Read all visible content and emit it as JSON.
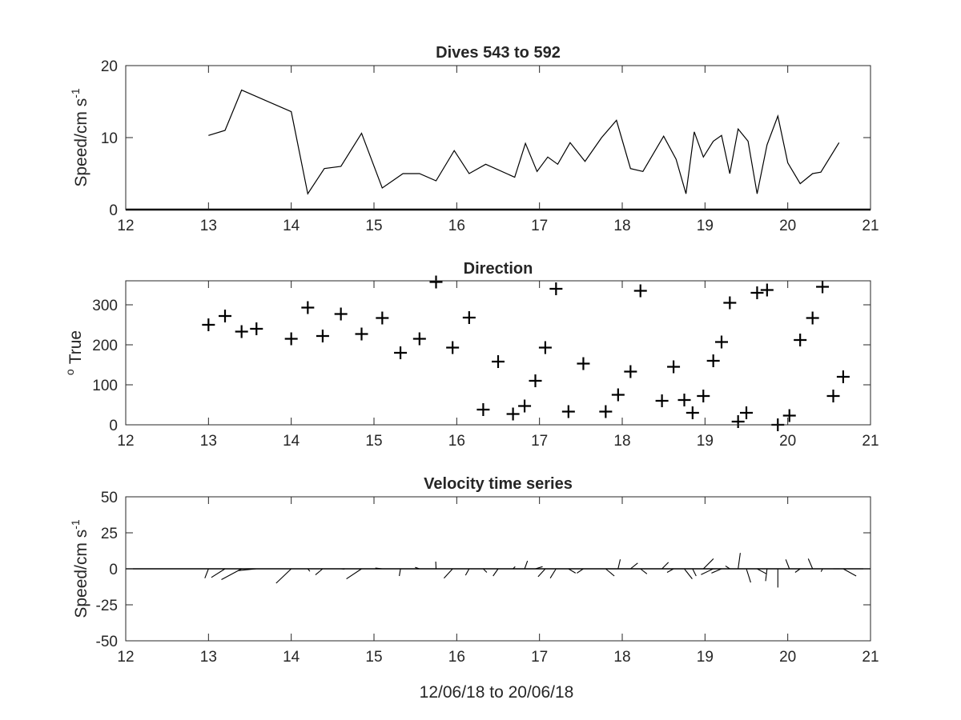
{
  "chart_data": [
    {
      "type": "line",
      "title": "Dives 543 to 592",
      "xlabel": "",
      "ylabel": "Speed/cm s",
      "ylabel_sup": "-1",
      "xlim": [
        12,
        21
      ],
      "ylim": [
        0,
        20
      ],
      "xticks": [
        "12",
        "13",
        "14",
        "15",
        "16",
        "17",
        "18",
        "19",
        "20",
        "21"
      ],
      "yticks": [
        "0",
        "10",
        "20"
      ],
      "grid": false,
      "series": [
        {
          "x": [
            13.0,
            13.2,
            13.4,
            14.0,
            14.2,
            14.4,
            14.6,
            14.85,
            15.1,
            15.35,
            15.55,
            15.75,
            15.97,
            16.15,
            16.35,
            16.7,
            16.83,
            16.97,
            17.1,
            17.22,
            17.37,
            17.55,
            17.75,
            17.93,
            18.1,
            18.25,
            18.5,
            18.65,
            18.77,
            18.87,
            18.98,
            19.1,
            19.2,
            19.3,
            19.4,
            19.52,
            19.63,
            19.75,
            19.88,
            20.0,
            20.15,
            20.3,
            20.4,
            20.62
          ],
          "y": [
            10.3,
            11.0,
            16.6,
            13.6,
            2.2,
            5.7,
            6.0,
            10.6,
            3.0,
            5.0,
            5.0,
            4.0,
            8.2,
            5.0,
            6.3,
            4.5,
            9.2,
            5.3,
            7.3,
            6.3,
            9.3,
            6.7,
            10.0,
            12.4,
            5.7,
            5.3,
            10.2,
            7.0,
            2.2,
            10.8,
            7.3,
            9.5,
            10.3,
            5.0,
            11.2,
            9.5,
            2.2,
            9.0,
            13.0,
            6.5,
            3.6,
            5.0,
            5.2,
            9.3
          ]
        }
      ]
    },
    {
      "type": "scatter",
      "title": "Direction",
      "xlabel": "",
      "ylabel": "True",
      "ylabel_sup": "o",
      "xlim": [
        12,
        21
      ],
      "ylim": [
        0,
        360
      ],
      "xticks": [
        "12",
        "13",
        "14",
        "15",
        "16",
        "17",
        "18",
        "19",
        "20",
        "21"
      ],
      "yticks": [
        "0",
        "100",
        "200",
        "300"
      ],
      "grid": false,
      "series": [
        {
          "x": [
            13.0,
            13.2,
            13.4,
            13.58,
            14.0,
            14.2,
            14.38,
            14.6,
            14.85,
            15.1,
            15.32,
            15.55,
            15.75,
            15.95,
            16.15,
            16.32,
            16.5,
            16.68,
            16.82,
            16.95,
            17.07,
            17.2,
            17.35,
            17.53,
            17.8,
            17.95,
            18.1,
            18.22,
            18.48,
            18.62,
            18.75,
            18.85,
            18.98,
            19.1,
            19.2,
            19.3,
            19.4,
            19.5,
            19.63,
            19.75,
            19.88,
            20.02,
            20.15,
            20.3,
            20.42,
            20.55,
            20.67
          ],
          "y": [
            250,
            272,
            233,
            240,
            215,
            293,
            222,
            277,
            227,
            267,
            180,
            215,
            357,
            193,
            268,
            38,
            158,
            27,
            47,
            110,
            193,
            340,
            33,
            153,
            33,
            75,
            133,
            335,
            60,
            145,
            62,
            30,
            72,
            160,
            207,
            305,
            8,
            30,
            330,
            337,
            0,
            23,
            212,
            267,
            345,
            72,
            120
          ]
        }
      ]
    },
    {
      "type": "vector",
      "title": "Velocity time series",
      "xlabel": "12/06/18 to 20/06/18",
      "ylabel": "Speed/cm s",
      "ylabel_sup": "-1",
      "xlim": [
        12,
        21
      ],
      "ylim": [
        -50,
        50
      ],
      "xticks": [
        "12",
        "13",
        "14",
        "15",
        "16",
        "17",
        "18",
        "19",
        "20",
        "21"
      ],
      "yticks": [
        "-50",
        "-25",
        "0",
        "25",
        "50"
      ],
      "grid": false,
      "time_days": [
        13.0,
        13.2,
        13.4,
        13.58,
        14.0,
        14.2,
        14.38,
        14.6,
        14.85,
        15.1,
        15.32,
        15.55,
        15.75,
        15.95,
        16.15,
        16.32,
        16.5,
        16.68,
        16.82,
        16.95,
        17.07,
        17.2,
        17.35,
        17.53,
        17.8,
        17.95,
        18.1,
        18.22,
        18.48,
        18.62,
        18.75,
        18.85,
        18.98,
        19.1,
        19.2,
        19.3,
        19.4,
        19.5,
        19.63,
        19.75,
        19.88,
        20.02,
        20.15,
        20.3,
        20.42,
        20.55,
        20.67
      ],
      "u": [
        -2.5,
        -9.5,
        -14.0,
        -13.0,
        -10.5,
        1.5,
        -5.0,
        2.5,
        -10.5,
        -4.8,
        -0.8,
        -3.0,
        -0.2,
        -6.0,
        -2.5,
        2.5,
        -3.5,
        1.5,
        2.0,
        5.0,
        -5.0,
        -4.0,
        5.0,
        -4.5,
        6.0,
        1.5,
        5.0,
        4.5,
        4.5,
        -4.5,
        5.5,
        2.5,
        7.0,
        -8.5,
        -7.0,
        -3.0,
        1.5,
        3.0,
        6.5,
        -1.0,
        0.0,
        -2.5,
        -3.5,
        -3.0,
        -1.0,
        4.5,
        9.0
      ],
      "v": [
        -6.5,
        -6.0,
        -7.5,
        -1.3,
        -10.0,
        -1.8,
        -4.2,
        -0.2,
        -7.0,
        0.5,
        -5.0,
        1.0,
        5.0,
        -6.5,
        -4.5,
        -2.5,
        -5.0,
        1.5,
        5.5,
        1.5,
        -5.5,
        -6.5,
        -3.0,
        -3.0,
        -5.0,
        6.5,
        4.0,
        -3.5,
        4.5,
        -2.5,
        -7.0,
        -5.0,
        7.0,
        -4.0,
        -3.0,
        2.0,
        11.0,
        -9.5,
        -3.5,
        -8.5,
        -13.0,
        6.5,
        -2.5,
        7.0,
        -2.0,
        0.0,
        -5.0
      ]
    }
  ]
}
